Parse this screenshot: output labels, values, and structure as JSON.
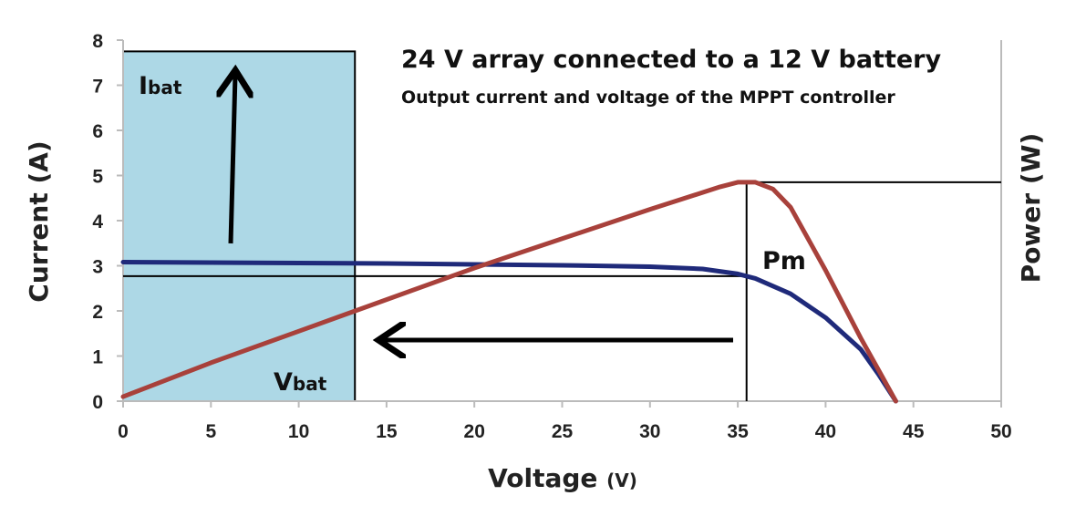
{
  "chart_data": {
    "type": "line",
    "title": "24 V array connected to a 12 V battery",
    "subtitle": "Output current and voltage of the MPPT controller",
    "xlabel": "Voltage",
    "xlabel_unit": "(V)",
    "ylabel": "Current (A)",
    "y2label": "Power (W)",
    "xlim": [
      0,
      50
    ],
    "ylim": [
      0,
      8
    ],
    "x_ticks": [
      "0",
      "5",
      "10",
      "15",
      "20",
      "25",
      "30",
      "35",
      "40",
      "45",
      "50"
    ],
    "y_ticks": [
      "0",
      "1",
      "2",
      "3",
      "4",
      "5",
      "6",
      "7",
      "8"
    ],
    "grid": false,
    "series": [
      {
        "color": "#1f2a7a",
        "x": [
          0,
          5,
          10,
          15,
          20,
          25,
          30,
          33,
          35,
          36,
          38,
          40,
          42,
          43,
          44
        ],
        "y": [
          3.08,
          3.07,
          3.06,
          3.05,
          3.03,
          3.01,
          2.98,
          2.93,
          2.82,
          2.72,
          2.38,
          1.85,
          1.15,
          0.6,
          0.0
        ]
      },
      {
        "color": "#a8413b",
        "x": [
          0,
          5,
          10,
          15,
          20,
          25,
          30,
          34,
          35,
          36,
          37,
          38,
          40,
          42,
          43,
          44
        ],
        "y": [
          0.1,
          0.85,
          1.55,
          2.25,
          2.95,
          3.6,
          4.25,
          4.75,
          4.85,
          4.85,
          4.7,
          4.3,
          2.9,
          1.4,
          0.7,
          0.0
        ]
      }
    ],
    "battery_region": {
      "x": [
        0,
        13.2
      ],
      "y": [
        0,
        7.75
      ],
      "color": "#add8e6"
    },
    "max_power_point": {
      "x": 35.5,
      "current": 2.77,
      "power": 4.85
    },
    "annotations": {
      "ibat_main": "I",
      "ibat_sub": "bat",
      "vbat_main": "V",
      "vbat_sub": "bat",
      "pm": "Pm"
    }
  }
}
